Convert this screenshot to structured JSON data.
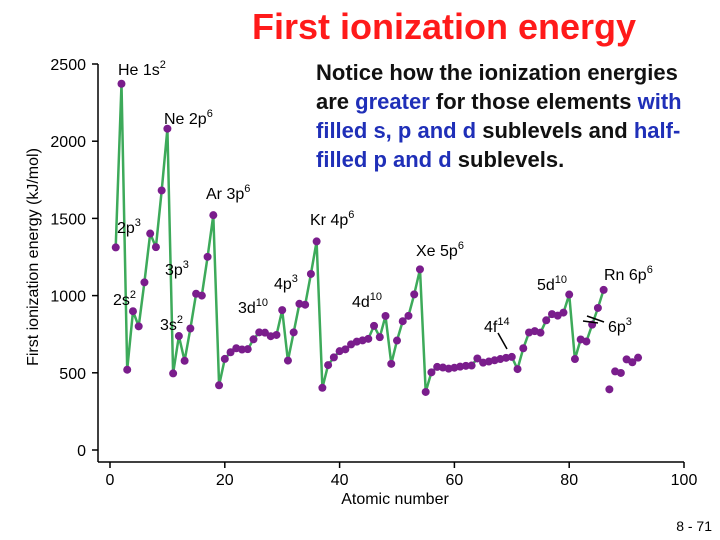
{
  "title": "First ionization energy",
  "notice": {
    "t1": "Notice how the ionization energies are ",
    "h1": "greater",
    "t2": " for those elements ",
    "h2": "with filled s, p and d",
    "t3": " sublevels and ",
    "h3": "half-filled p and d",
    "t4": " sublevels."
  },
  "slide_number": "8 - 71",
  "colors": {
    "title": "#ff1a1a",
    "line": "#3daa5a",
    "marker": "#7a1d8c",
    "highlight": "#1f2fb8"
  },
  "chart_data": {
    "type": "line",
    "xlabel": "Atomic number",
    "ylabel": "First ionization energy (kJ/mol)",
    "xlim": [
      0,
      100
    ],
    "ylim": [
      0,
      2500
    ],
    "xticks": [
      "0",
      "20",
      "40",
      "60",
      "80",
      "100"
    ],
    "yticks": [
      "0",
      "500",
      "1000",
      "1500",
      "2000",
      "2500"
    ],
    "series": [
      {
        "name": "First ionization energy",
        "x": [
          1,
          2,
          3,
          4,
          5,
          6,
          7,
          8,
          9,
          10,
          11,
          12,
          13,
          14,
          15,
          16,
          17,
          18,
          19,
          20,
          21,
          22,
          23,
          24,
          25,
          26,
          27,
          28,
          29,
          30,
          31,
          32,
          33,
          34,
          35,
          36,
          37,
          38,
          39,
          40,
          41,
          42,
          43,
          44,
          45,
          46,
          47,
          48,
          49,
          50,
          51,
          52,
          53,
          54,
          55,
          56,
          57,
          58,
          59,
          60,
          61,
          62,
          63,
          64,
          65,
          66,
          67,
          68,
          69,
          70,
          71,
          72,
          73,
          74,
          75,
          76,
          77,
          78,
          79,
          80,
          81,
          82,
          83,
          84,
          85,
          86
        ],
        "y": [
          1312,
          2372,
          520,
          899,
          801,
          1086,
          1402,
          1314,
          1681,
          2081,
          496,
          738,
          578,
          787,
          1012,
          1000,
          1251,
          1521,
          419,
          590,
          633,
          659,
          651,
          653,
          717,
          762,
          760,
          737,
          745,
          906,
          579,
          762,
          947,
          941,
          1140,
          1351,
          403,
          550,
          600,
          640,
          652,
          684,
          702,
          710,
          720,
          804,
          731,
          868,
          558,
          709,
          834,
          869,
          1008,
          1170,
          376,
          503,
          538,
          534,
          527,
          533,
          540,
          545,
          547,
          593,
          566,
          573,
          581,
          589,
          597,
          603,
          524,
          659,
          761,
          770,
          760,
          840,
          880,
          870,
          890,
          1007,
          589,
          716,
          703,
          812,
          920,
          1037
        ]
      },
      {
        "name": "Unconnected points",
        "x": [
          87,
          88,
          89,
          90,
          91,
          92
        ],
        "y": [
          393,
          509,
          499,
          587,
          568,
          598
        ]
      }
    ],
    "annotations": [
      {
        "text": "He 1s",
        "sup": "2"
      },
      {
        "text": "Ne 2p",
        "sup": "6"
      },
      {
        "text": "Ar 3p",
        "sup": "6"
      },
      {
        "text": "Kr 4p",
        "sup": "6"
      },
      {
        "text": "Xe 5p",
        "sup": "6"
      },
      {
        "text": "Rn 6p",
        "sup": "6"
      },
      {
        "text": "2p",
        "sup": "3"
      },
      {
        "text": "2s",
        "sup": "2"
      },
      {
        "text": "3p",
        "sup": "3"
      },
      {
        "text": "3s",
        "sup": "2"
      },
      {
        "text": "3d",
        "sup": "10"
      },
      {
        "text": "4p",
        "sup": "3"
      },
      {
        "text": "4d",
        "sup": "10"
      },
      {
        "text": "4f",
        "sup": "14"
      },
      {
        "text": "5d",
        "sup": "10"
      },
      {
        "text": "6p",
        "sup": "3"
      }
    ]
  }
}
